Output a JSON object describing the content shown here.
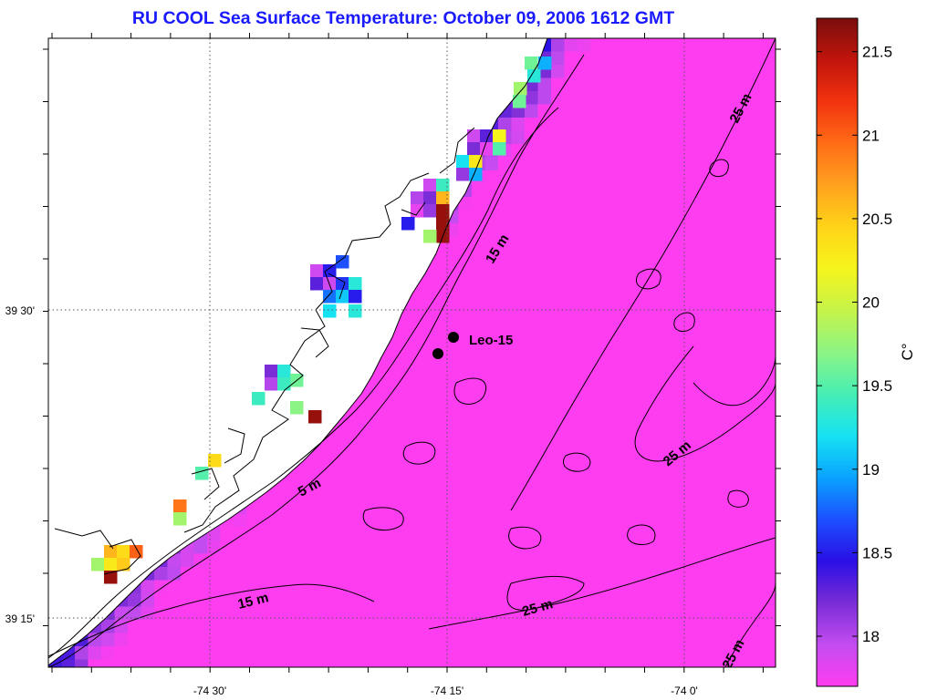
{
  "title": "RU COOL  Sea Surface Temperature:  October 09, 2006 1612 GMT",
  "x_ticks": [
    "-74 30'",
    "-74 15'",
    "-74 0'"
  ],
  "y_ticks": [
    "39 30'",
    "39 15'"
  ],
  "station": {
    "label": "Leo-15"
  },
  "isobath_labels": {
    "a": "5 m",
    "b": "15 m",
    "c": "15 m",
    "d": "25 m",
    "e": "25 m",
    "f": "25 m",
    "g": "25 m"
  },
  "colorbar": {
    "unit": "C°",
    "ticks": [
      "21.5",
      "21",
      "20.5",
      "20",
      "19.5",
      "19",
      "18.5",
      "18"
    ],
    "range": [
      17.7,
      21.7
    ],
    "colormap": [
      "#ff3df0",
      "#c34cf0",
      "#7a2cd6",
      "#2a0fe6",
      "#1c50ff",
      "#0aa3ff",
      "#16e2f2",
      "#46eeb4",
      "#8cf484",
      "#c6f34a",
      "#f5f51c",
      "#ffd418",
      "#ffa11e",
      "#ff6c16",
      "#f2330f",
      "#c1140c",
      "#7a0e0c"
    ]
  },
  "colors": {
    "title": "#1a1aff",
    "land": "#ffffff",
    "marker": "#000000"
  }
}
